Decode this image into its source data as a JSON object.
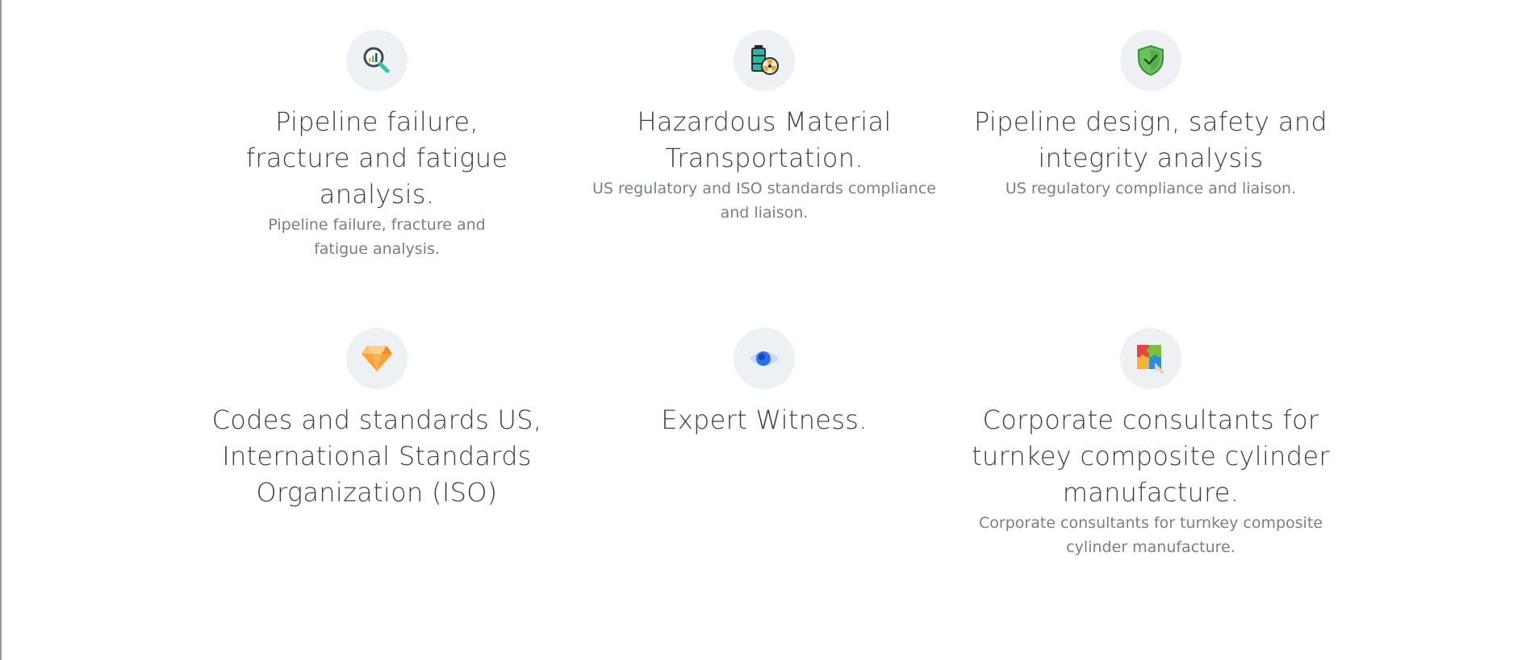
{
  "services": [
    {
      "icon": "magnifier-chart-icon",
      "title": "Pipeline failure, fracture and fatigue analysis.",
      "description": "Pipeline failure, fracture and fatigue analysis."
    },
    {
      "icon": "hazard-barrels-icon",
      "title": "Hazardous Material Transportation.",
      "description": "US regulatory and ISO standards compliance and liaison."
    },
    {
      "icon": "shield-check-icon",
      "title": "Pipeline design, safety and integrity analysis",
      "description": "US regulatory compliance and liaison."
    },
    {
      "icon": "diamond-icon",
      "title": "Codes and standards US, International Standards Organization (ISO)",
      "description": ""
    },
    {
      "icon": "eye-icon",
      "title": "Expert Witness.",
      "description": ""
    },
    {
      "icon": "puzzle-icon",
      "title": "Corporate consultants for turnkey composite cylinder manufacture.",
      "description": "Corporate consultants for turnkey composite cylinder manufacture."
    }
  ],
  "colors": {
    "title": "#3b3f44",
    "description": "#77808a",
    "icon_circle": "#eef1f4"
  }
}
